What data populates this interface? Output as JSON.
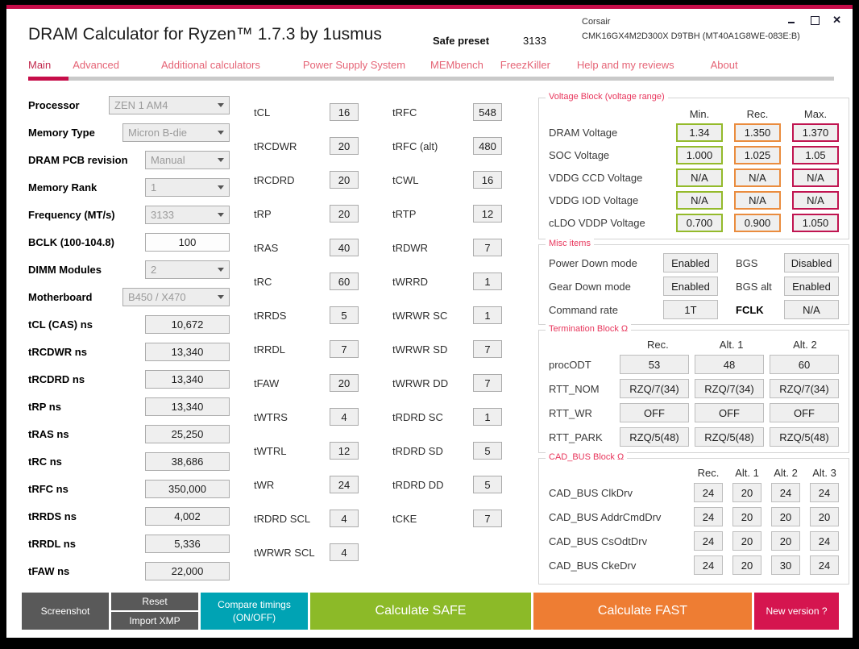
{
  "window": {
    "title": "DRAM Calculator for Ryzen™ 1.7.3 by 1usmus",
    "preset_label": "Safe preset",
    "preset_frequency": "3133",
    "memory_vendor": "Corsair",
    "memory_model": "CMK16GX4M2D300X D9TBH (MT40A1G8WE-083E:B)"
  },
  "nav": {
    "tabs": [
      "Main",
      "Advanced",
      "Additional calculators",
      "Power Supply System",
      "MEMbench",
      "FreezKiller",
      "Help and my reviews",
      "About"
    ],
    "active_tab": "Main"
  },
  "config": {
    "rows": [
      {
        "label": "Processor",
        "value": "ZEN 1 AM4"
      },
      {
        "label": "Memory Type",
        "value": "Micron B-die"
      },
      {
        "label": "DRAM PCB revision",
        "value": "Manual"
      },
      {
        "label": "Memory Rank",
        "value": "1"
      },
      {
        "label": "Frequency (MT/s)",
        "value": "3133"
      },
      {
        "label": "BCLK (100-104.8)",
        "value": "100"
      },
      {
        "label": "DIMM Modules",
        "value": "2"
      },
      {
        "label": "Motherboard",
        "value": "B450 / X470"
      }
    ],
    "ns_rows": [
      {
        "label": "tCL (CAS) ns",
        "value": "10,672"
      },
      {
        "label": "tRCDWR ns",
        "value": "13,340"
      },
      {
        "label": "tRCDRD ns",
        "value": "13,340"
      },
      {
        "label": "tRP ns",
        "value": "13,340"
      },
      {
        "label": "tRAS ns",
        "value": "25,250"
      },
      {
        "label": "tRC ns",
        "value": "38,686"
      },
      {
        "label": "tRFC ns",
        "value": "350,000"
      },
      {
        "label": "tRRDS ns",
        "value": "4,002"
      },
      {
        "label": "tRRDL ns",
        "value": "5,336"
      },
      {
        "label": "tFAW ns",
        "value": "22,000"
      }
    ]
  },
  "timings_a": {
    "rows": [
      {
        "label": "tCL",
        "value": "16"
      },
      {
        "label": "tRCDWR",
        "value": "20"
      },
      {
        "label": "tRCDRD",
        "value": "20"
      },
      {
        "label": "tRP",
        "value": "20"
      },
      {
        "label": "tRAS",
        "value": "40"
      },
      {
        "label": "tRC",
        "value": "60"
      },
      {
        "label": "tRRDS",
        "value": "5"
      },
      {
        "label": "tRRDL",
        "value": "7"
      },
      {
        "label": "tFAW",
        "value": "20"
      },
      {
        "label": "tWTRS",
        "value": "4"
      },
      {
        "label": "tWTRL",
        "value": "12"
      },
      {
        "label": "tWR",
        "value": "24"
      },
      {
        "label": "tRDRD SCL",
        "value": "4"
      },
      {
        "label": "tWRWR SCL",
        "value": "4"
      }
    ]
  },
  "timings_b": {
    "rows": [
      {
        "label": "tRFC",
        "value": "548"
      },
      {
        "label": "tRFC (alt)",
        "value": "480"
      },
      {
        "label": "tCWL",
        "value": "16"
      },
      {
        "label": "tRTP",
        "value": "12"
      },
      {
        "label": "tRDWR",
        "value": "7"
      },
      {
        "label": "tWRRD",
        "value": "1"
      },
      {
        "label": "tWRWR SC",
        "value": "1"
      },
      {
        "label": "tWRWR SD",
        "value": "7"
      },
      {
        "label": "tWRWR DD",
        "value": "7"
      },
      {
        "label": "tRDRD SC",
        "value": "1"
      },
      {
        "label": "tRDRD SD",
        "value": "5"
      },
      {
        "label": "tRDRD DD",
        "value": "5"
      },
      {
        "label": "tCKE",
        "value": "7"
      }
    ]
  },
  "voltage_block": {
    "title": "Voltage Block (voltage range)",
    "columns": [
      "Min.",
      "Rec.",
      "Max."
    ],
    "rows": [
      {
        "label": "DRAM Voltage",
        "min": "1.34",
        "rec": "1.350",
        "max": "1.370"
      },
      {
        "label": "SOC Voltage",
        "min": "1.000",
        "rec": "1.025",
        "max": "1.05"
      },
      {
        "label": "VDDG  CCD Voltage",
        "min": "N/A",
        "rec": "N/A",
        "max": "N/A"
      },
      {
        "label": "VDDG  IOD Voltage",
        "min": "N/A",
        "rec": "N/A",
        "max": "N/A"
      },
      {
        "label": "cLDO VDDP Voltage",
        "min": "0.700",
        "rec": "0.900",
        "max": "1.050"
      }
    ]
  },
  "misc": {
    "title": "Misc items",
    "rows": [
      {
        "label_left": "Power Down mode",
        "value_left": "Enabled",
        "label_right": "BGS",
        "value_right": "Disabled"
      },
      {
        "label_left": "Gear Down mode",
        "value_left": "Enabled",
        "label_right": "BGS alt",
        "value_right": "Enabled"
      },
      {
        "label_left": "Command rate",
        "value_left": "1T",
        "label_right": "FCLK",
        "value_right": "N/A"
      }
    ]
  },
  "termination": {
    "title": "Termination Block Ω",
    "columns": [
      "Rec.",
      "Alt. 1",
      "Alt. 2"
    ],
    "rows": [
      {
        "label": "procODT",
        "values": [
          "53",
          "48",
          "60"
        ]
      },
      {
        "label": "RTT_NOM",
        "values": [
          "RZQ/7(34)",
          "RZQ/7(34)",
          "RZQ/7(34)"
        ]
      },
      {
        "label": "RTT_WR",
        "values": [
          "OFF",
          "OFF",
          "OFF"
        ]
      },
      {
        "label": "RTT_PARK",
        "values": [
          "RZQ/5(48)",
          "RZQ/5(48)",
          "RZQ/5(48)"
        ]
      }
    ]
  },
  "cad_bus": {
    "title": "CAD_BUS Block Ω",
    "columns": [
      "Rec.",
      "Alt. 1",
      "Alt. 2",
      "Alt. 3"
    ],
    "rows": [
      {
        "label": "CAD_BUS ClkDrv",
        "values": [
          "24",
          "20",
          "24",
          "24"
        ]
      },
      {
        "label": "CAD_BUS AddrCmdDrv",
        "values": [
          "24",
          "20",
          "20",
          "20"
        ]
      },
      {
        "label": "CAD_BUS CsOdtDrv",
        "values": [
          "24",
          "20",
          "20",
          "24"
        ]
      },
      {
        "label": "CAD_BUS CkeDrv",
        "values": [
          "24",
          "20",
          "30",
          "24"
        ]
      }
    ]
  },
  "footer": {
    "screenshot": "Screenshot",
    "reset": "Reset",
    "import_xmp": "Import XMP",
    "compare_line1": "Compare timings",
    "compare_line2": "(ON/OFF)",
    "calculate_safe": "Calculate SAFE",
    "calculate_fast": "Calculate FAST",
    "new_version": "New version ?"
  },
  "colors": {
    "accent": "#c60d49",
    "voltage_min_border": "#94ba2b",
    "voltage_rec_border": "#ea8c3e",
    "voltage_max_border": "#c01450",
    "btn_gray": "#595959",
    "btn_teal": "#00a3b4",
    "btn_green": "#8cba28",
    "btn_orange": "#ee7d33",
    "btn_crimson": "#d5154f"
  }
}
